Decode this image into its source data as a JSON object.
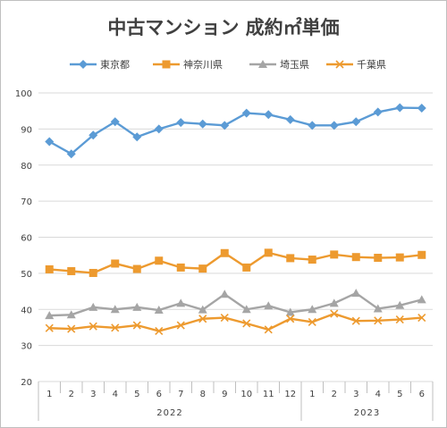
{
  "chart_data": {
    "type": "line",
    "title": "中古マンション 成約㎡単価",
    "categories": [
      "1",
      "2",
      "3",
      "4",
      "5",
      "6",
      "7",
      "8",
      "9",
      "10",
      "11",
      "12",
      "1",
      "2",
      "3",
      "4",
      "5",
      "6"
    ],
    "year_groups": [
      {
        "label": "2022",
        "start": 0,
        "end": 11
      },
      {
        "label": "2023",
        "start": 12,
        "end": 17
      }
    ],
    "ylim": [
      20,
      100
    ],
    "yticks": [
      20,
      30,
      40,
      50,
      60,
      70,
      80,
      90,
      100
    ],
    "grid": "horizontal",
    "legend_position": "top",
    "series": [
      {
        "name": "東京都",
        "color": "#5b9bd5",
        "marker": "diamond",
        "values": [
          86.5,
          83.1,
          88.3,
          92.0,
          87.8,
          90.0,
          91.8,
          91.4,
          91.0,
          94.4,
          94.0,
          92.6,
          91.0,
          91.0,
          92.0,
          94.7,
          95.9,
          95.8
        ]
      },
      {
        "name": "神奈川県",
        "color": "#ed9a2f",
        "marker": "square",
        "values": [
          51.1,
          50.6,
          50.1,
          52.7,
          51.2,
          53.5,
          51.6,
          51.3,
          55.6,
          51.6,
          55.7,
          54.2,
          53.8,
          55.2,
          54.5,
          54.3,
          54.4,
          55.1
        ]
      },
      {
        "name": "埼玉県",
        "color": "#a5a5a5",
        "marker": "triangle",
        "values": [
          38.3,
          38.5,
          40.6,
          40.0,
          40.6,
          39.8,
          41.7,
          39.9,
          44.2,
          40.0,
          41.0,
          39.2,
          40.0,
          41.7,
          44.5,
          40.2,
          41.1,
          42.7
        ]
      },
      {
        "name": "千葉県",
        "color": "#ed9a2f",
        "marker": "x",
        "values": [
          34.8,
          34.6,
          35.3,
          34.9,
          35.6,
          34.0,
          35.6,
          37.4,
          37.7,
          36.1,
          34.4,
          37.4,
          36.5,
          38.8,
          36.8,
          36.9,
          37.2,
          37.7
        ]
      }
    ]
  }
}
